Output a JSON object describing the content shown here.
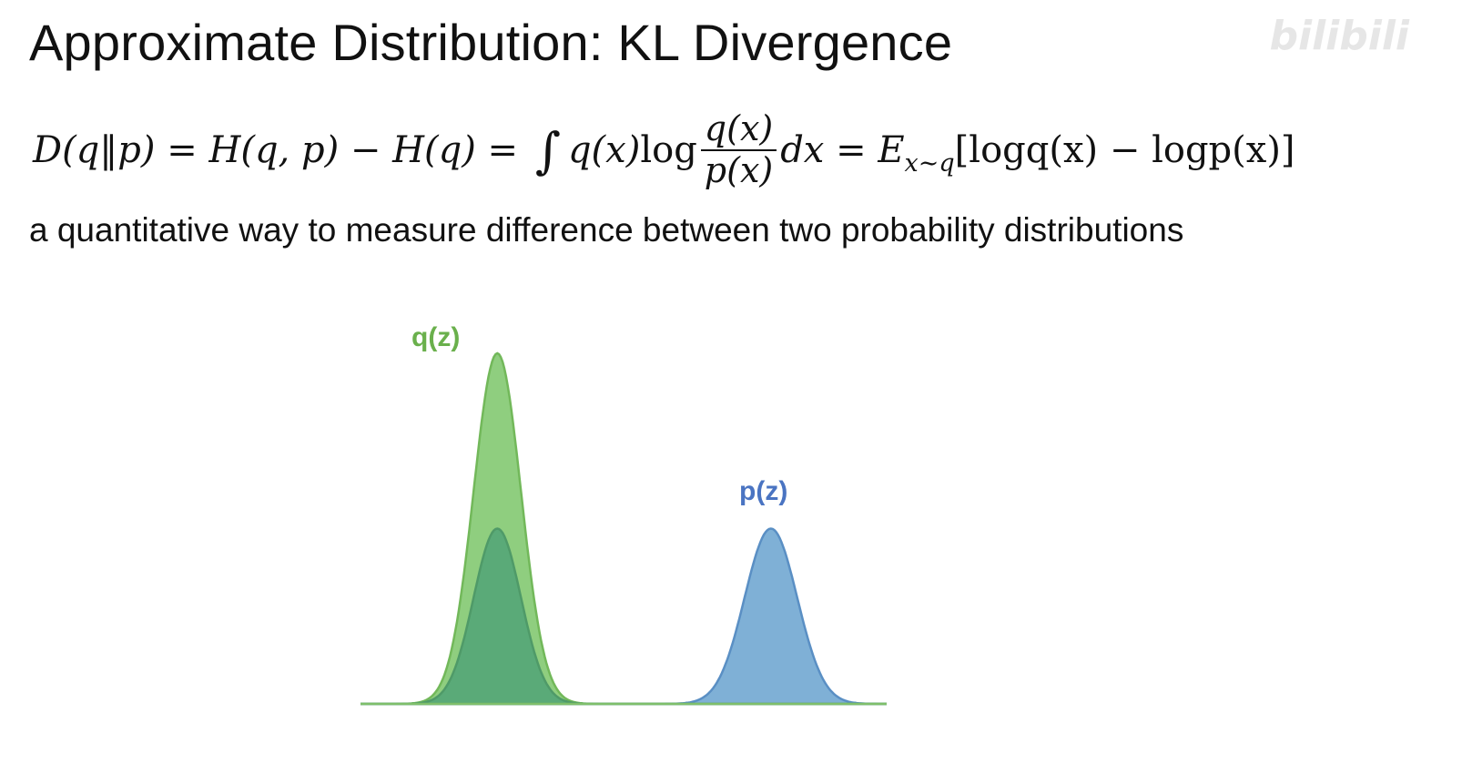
{
  "slide": {
    "title": "Approximate Distribution: KL Divergence",
    "watermark": "bilibili",
    "subtitle": "a quantitative way to measure difference between two probability distributions"
  },
  "formula": {
    "lhs": "D(q‖p)",
    "eq1": " = ",
    "cross_entropy": "H(q, p)",
    "minus": " − ",
    "entropy": "H(q)",
    "eq2": " = ",
    "integral": "∫",
    "integrand": "q(x)",
    "log": "log",
    "frac_num": "q(x)",
    "frac_den": "p(x)",
    "dx": "dx",
    "eq3": " = ",
    "expect": "E",
    "expect_sub": "x∼q",
    "bracket": "[logq(x) − logp(x)]"
  },
  "chart_data": {
    "type": "area",
    "series": [
      {
        "name": "q(z)",
        "color": "#8fce7f",
        "peak": 1.0,
        "mean": 0.26,
        "sd": 0.045
      },
      {
        "name": "p(z)",
        "color": "#7fb0d6",
        "peak": 0.5,
        "mean": 0.78,
        "sd": 0.05
      },
      {
        "name": "",
        "color": "#5aaa78",
        "peak": 0.5,
        "mean": 0.26,
        "sd": 0.045
      }
    ]
  }
}
